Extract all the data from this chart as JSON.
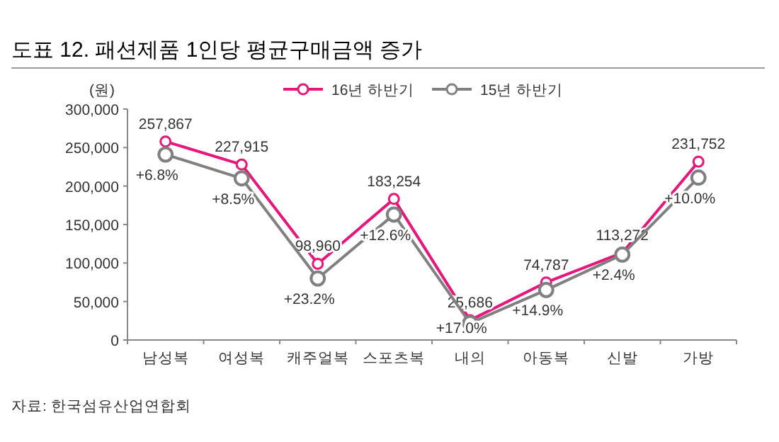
{
  "chart_data": {
    "type": "line",
    "title": "도표 12. 패션제품 1인당 평균구매금액 증가",
    "ylabel": "(원)",
    "categories": [
      "남성복",
      "여성복",
      "캐주얼복",
      "스포츠복",
      "내의",
      "아동복",
      "신발",
      "가방"
    ],
    "series": [
      {
        "name": "16년 하반기",
        "color": "#e8157a",
        "values": [
          257867,
          227915,
          98960,
          183254,
          25686,
          74787,
          113272,
          231752
        ],
        "value_labels": [
          "257,867",
          "227,915",
          "98,960",
          "183,254",
          "25,686",
          "74,787",
          "113,272",
          "231,752"
        ]
      },
      {
        "name": "15년 하반기",
        "color": "#808080",
        "values": [
          241000,
          210000,
          80000,
          163000,
          22000,
          65000,
          111000,
          211000
        ]
      }
    ],
    "ylim": [
      0,
      300000
    ],
    "yticks": [
      {
        "value": 0,
        "label": "0"
      },
      {
        "value": 50000,
        "label": "50,000"
      },
      {
        "value": 100000,
        "label": "100,000"
      },
      {
        "value": 150000,
        "label": "150,000"
      },
      {
        "value": 200000,
        "label": "200,000"
      },
      {
        "value": 250000,
        "label": "250,000"
      },
      {
        "value": 300000,
        "label": "300,000"
      }
    ],
    "marker": "circle",
    "legend": "top",
    "grid": false,
    "annotations": [
      {
        "text": "+6.8%",
        "x": "남성복",
        "y": 241000
      },
      {
        "text": "+8.5%",
        "x": "여성복",
        "y": 210000
      },
      {
        "text": "+23.2%",
        "x": "캐주얼복",
        "y": 80000
      },
      {
        "text": "+12.6%",
        "x": "스포츠복",
        "y": 163000
      },
      {
        "text": "+17.0%",
        "x": "내의",
        "y": 22000
      },
      {
        "text": "+14.9%",
        "x": "아동복",
        "y": 65000
      },
      {
        "text": "+2.4%",
        "x": "신발",
        "y": 111000
      },
      {
        "text": "+10.0%",
        "x": "가방",
        "y": 211000
      },
      "자료: 한국섬유산업연합회"
    ]
  }
}
